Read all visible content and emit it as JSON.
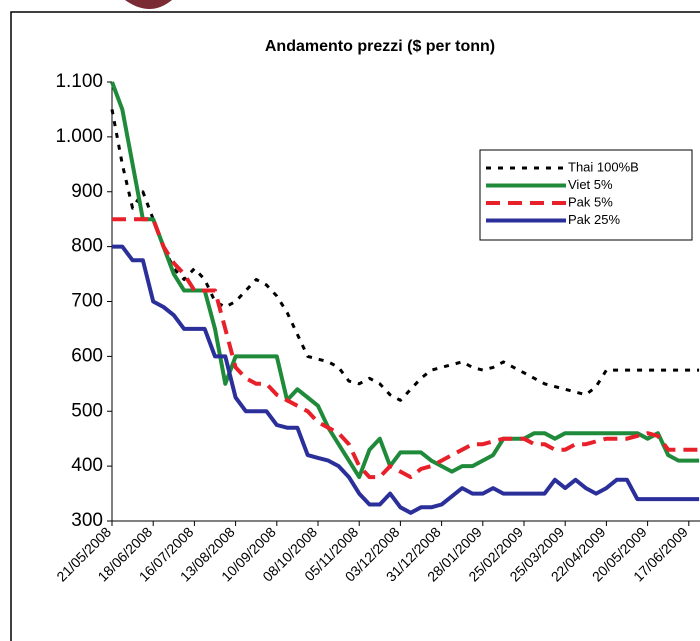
{
  "chart_data": {
    "type": "line",
    "title": "Andamento prezzi ($ per tonn)",
    "categories": [
      "21/05/2008",
      null,
      null,
      null,
      "18/06/2008",
      null,
      null,
      null,
      "16/07/2008",
      null,
      null,
      null,
      "13/08/2008",
      null,
      null,
      null,
      "10/09/2008",
      null,
      null,
      null,
      "08/10/2008",
      null,
      null,
      null,
      "05/11/2008",
      null,
      null,
      null,
      "03/12/2008",
      null,
      null,
      null,
      "31/12/2008",
      null,
      null,
      null,
      "28/01/2009",
      null,
      null,
      null,
      "25/02/2009",
      null,
      null,
      null,
      "25/03/2009",
      null,
      null,
      null,
      "22/04/2009",
      null,
      null,
      null,
      "20/05/2009",
      null,
      null,
      null,
      "17/06/2009",
      null
    ],
    "ylim": [
      300,
      1100
    ],
    "yticks": [
      300,
      400,
      500,
      600,
      700,
      800,
      900,
      {
        "value": 1000,
        "label": "1.000"
      },
      {
        "value": 1100,
        "label": "1.100"
      }
    ],
    "legend": "upper right",
    "series": [
      {
        "name": "Thai 100%B",
        "color": "#000000",
        "dash": "dotted",
        "values": [
          1050,
          950,
          870,
          900,
          850,
          800,
          760,
          740,
          760,
          740,
          700,
          690,
          700,
          720,
          740,
          730,
          710,
          680,
          640,
          600,
          595,
          590,
          580,
          555,
          550,
          560,
          550,
          530,
          520,
          540,
          560,
          575,
          580,
          585,
          590,
          580,
          575,
          580,
          590,
          580,
          570,
          560,
          550,
          545,
          540,
          535,
          530,
          545,
          575,
          575,
          575,
          575,
          575,
          575,
          575,
          575,
          575,
          575
        ]
      },
      {
        "name": "Viet 5%",
        "color": "#1f8a3a",
        "dash": "solid",
        "values": [
          1100,
          1050,
          950,
          850,
          850,
          800,
          750,
          720,
          720,
          720,
          650,
          550,
          600,
          600,
          600,
          600,
          600,
          520,
          540,
          525,
          510,
          470,
          440,
          410,
          380,
          430,
          450,
          400,
          425,
          425,
          425,
          410,
          400,
          390,
          400,
          400,
          410,
          420,
          450,
          450,
          450,
          460,
          460,
          450,
          460,
          460,
          460,
          460,
          460,
          460,
          460,
          460,
          450,
          460,
          420,
          410,
          410,
          410
        ]
      },
      {
        "name": "Pak 5%",
        "color": "#e8202a",
        "dash": "dashed",
        "values": [
          850,
          850,
          850,
          850,
          850,
          800,
          770,
          750,
          720,
          720,
          720,
          650,
          580,
          560,
          550,
          550,
          530,
          520,
          510,
          500,
          480,
          470,
          460,
          440,
          400,
          380,
          380,
          400,
          390,
          380,
          395,
          400,
          410,
          420,
          430,
          440,
          440,
          445,
          450,
          450,
          450,
          440,
          440,
          430,
          430,
          440,
          440,
          445,
          450,
          450,
          450,
          455,
          460,
          455,
          430,
          430,
          430,
          430
        ]
      },
      {
        "name": "Pak 25%",
        "color": "#2b2f9a",
        "dash": "solid",
        "values": [
          800,
          800,
          775,
          775,
          700,
          690,
          675,
          650,
          650,
          650,
          600,
          600,
          525,
          500,
          500,
          500,
          475,
          470,
          470,
          420,
          415,
          410,
          400,
          380,
          350,
          330,
          330,
          350,
          325,
          315,
          325,
          325,
          330,
          345,
          360,
          350,
          350,
          360,
          350,
          350,
          350,
          350,
          350,
          375,
          360,
          375,
          360,
          350,
          360,
          375,
          375,
          340,
          340,
          340,
          340,
          340,
          340,
          340
        ]
      }
    ]
  }
}
